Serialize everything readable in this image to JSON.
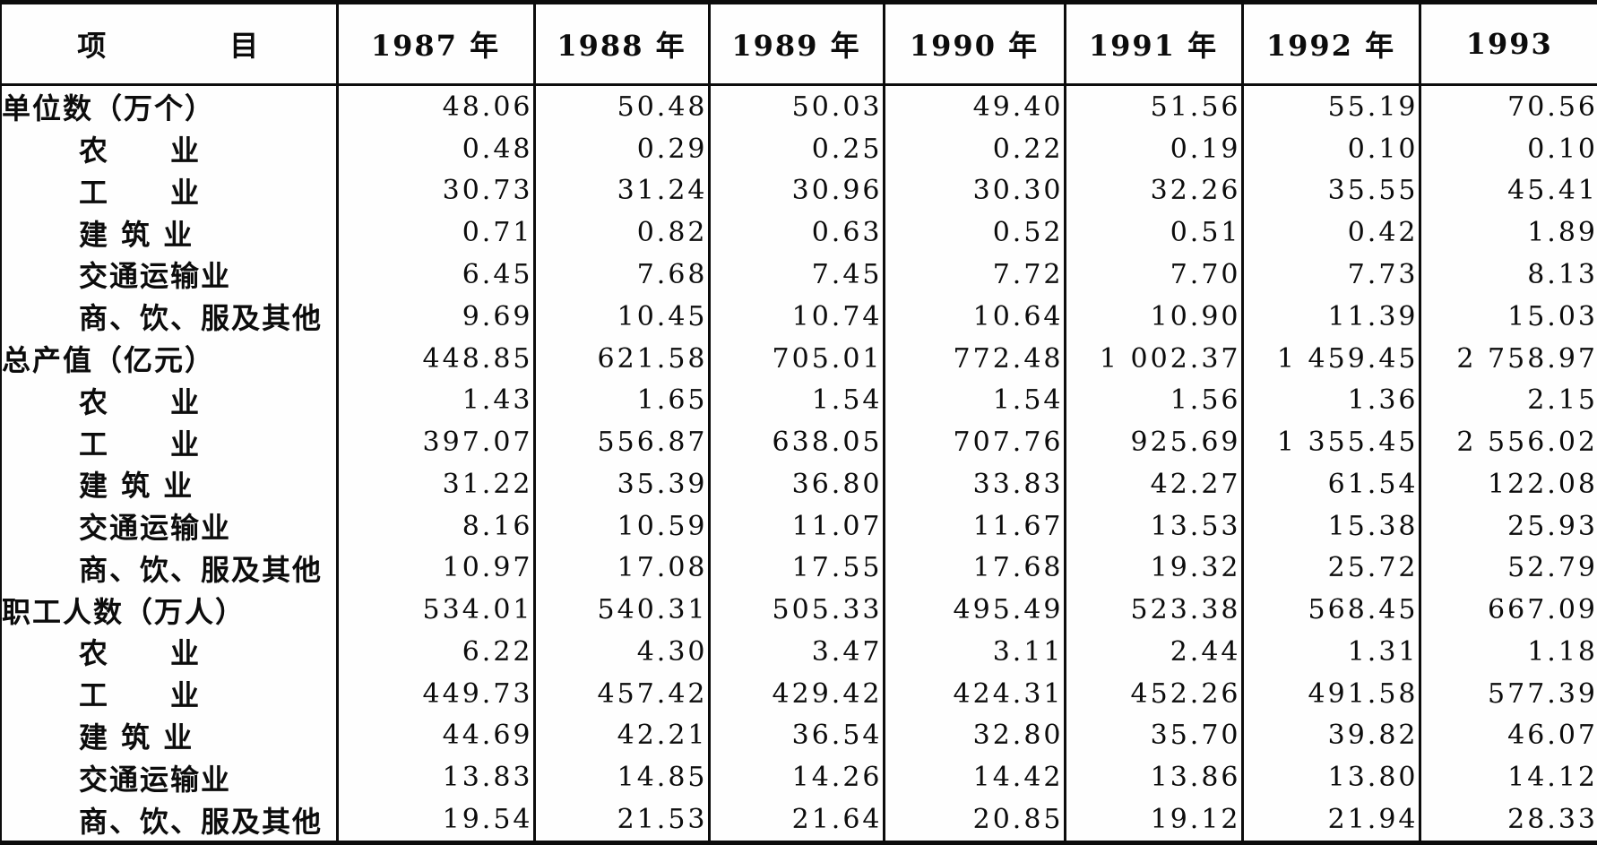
{
  "colors": {
    "ink": "#0c0c0c",
    "paper": "#fefefe"
  },
  "table": {
    "header": {
      "item_label": "项　　　　目",
      "year_columns": [
        "1987 年",
        "1988 年",
        "1989 年",
        "1990 年",
        "1991 年",
        "1992 年",
        "1993"
      ]
    },
    "rows": [
      {
        "label": "单位数（万个）",
        "level": "group",
        "values": [
          "48.06",
          "50.48",
          "50.03",
          "49.40",
          "51.56",
          "55.19",
          "70.56"
        ]
      },
      {
        "label": "农　　业",
        "level": "sub",
        "values": [
          "0.48",
          "0.29",
          "0.25",
          "0.22",
          "0.19",
          "0.10",
          "0.10"
        ]
      },
      {
        "label": "工　　业",
        "level": "sub",
        "values": [
          "30.73",
          "31.24",
          "30.96",
          "30.30",
          "32.26",
          "35.55",
          "45.41"
        ]
      },
      {
        "label": "建 筑 业",
        "level": "sub",
        "values": [
          "0.71",
          "0.82",
          "0.63",
          "0.52",
          "0.51",
          "0.42",
          "1.89"
        ]
      },
      {
        "label": "交通运输业",
        "level": "sub",
        "values": [
          "6.45",
          "7.68",
          "7.45",
          "7.72",
          "7.70",
          "7.73",
          "8.13"
        ]
      },
      {
        "label": "商、饮、服及其他",
        "level": "sub",
        "values": [
          "9.69",
          "10.45",
          "10.74",
          "10.64",
          "10.90",
          "11.39",
          "15.03"
        ]
      },
      {
        "label": "总产值（亿元）",
        "level": "group",
        "values": [
          "448.85",
          "621.58",
          "705.01",
          "772.48",
          "1 002.37",
          "1 459.45",
          "2 758.97"
        ]
      },
      {
        "label": "农　　业",
        "level": "sub",
        "values": [
          "1.43",
          "1.65",
          "1.54",
          "1.54",
          "1.56",
          "1.36",
          "2.15"
        ]
      },
      {
        "label": "工　　业",
        "level": "sub",
        "values": [
          "397.07",
          "556.87",
          "638.05",
          "707.76",
          "925.69",
          "1 355.45",
          "2 556.02"
        ]
      },
      {
        "label": "建 筑 业",
        "level": "sub",
        "values": [
          "31.22",
          "35.39",
          "36.80",
          "33.83",
          "42.27",
          "61.54",
          "122.08"
        ]
      },
      {
        "label": "交通运输业",
        "level": "sub",
        "values": [
          "8.16",
          "10.59",
          "11.07",
          "11.67",
          "13.53",
          "15.38",
          "25.93"
        ]
      },
      {
        "label": "商、饮、服及其他",
        "level": "sub",
        "values": [
          "10.97",
          "17.08",
          "17.55",
          "17.68",
          "19.32",
          "25.72",
          "52.79"
        ]
      },
      {
        "label": "职工人数（万人）",
        "level": "group",
        "values": [
          "534.01",
          "540.31",
          "505.33",
          "495.49",
          "523.38",
          "568.45",
          "667.09"
        ]
      },
      {
        "label": "农　　业",
        "level": "sub",
        "values": [
          "6.22",
          "4.30",
          "3.47",
          "3.11",
          "2.44",
          "1.31",
          "1.18"
        ]
      },
      {
        "label": "工　　业",
        "level": "sub",
        "values": [
          "449.73",
          "457.42",
          "429.42",
          "424.31",
          "452.26",
          "491.58",
          "577.39"
        ]
      },
      {
        "label": "建 筑 业",
        "level": "sub",
        "values": [
          "44.69",
          "42.21",
          "36.54",
          "32.80",
          "35.70",
          "39.82",
          "46.07"
        ]
      },
      {
        "label": "交通运输业",
        "level": "sub",
        "values": [
          "13.83",
          "14.85",
          "14.26",
          "14.42",
          "13.86",
          "13.80",
          "14.12"
        ]
      },
      {
        "label": "商、饮、服及其他",
        "level": "sub",
        "values": [
          "19.54",
          "21.53",
          "21.64",
          "20.85",
          "19.12",
          "21.94",
          "28.33"
        ]
      }
    ]
  }
}
